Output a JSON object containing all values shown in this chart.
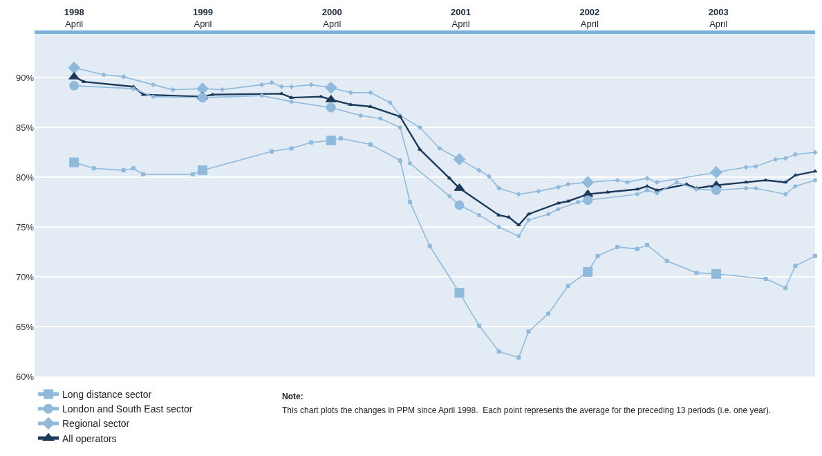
{
  "chart_data": {
    "type": "line",
    "xlim": [
      "1997-12-10",
      "2003-12-31"
    ],
    "ylim": [
      60,
      94.4
    ],
    "xticks": [
      {
        "value": "1998-04",
        "label": "1998\nApril"
      },
      {
        "value": "1999-04",
        "label": "1999\nApril"
      },
      {
        "value": "2000-04",
        "label": "2000\nApril"
      },
      {
        "value": "2001-04",
        "label": "2001\nApril"
      },
      {
        "value": "2002-04",
        "label": "2002\nApril"
      },
      {
        "value": "2003-04",
        "label": "2003\nApril"
      }
    ],
    "yticks": [
      {
        "value": 60,
        "label": "60%"
      },
      {
        "value": 65,
        "label": "65%"
      },
      {
        "value": 70,
        "label": "70%"
      },
      {
        "value": 75,
        "label": "75%"
      },
      {
        "value": 80,
        "label": "80%"
      },
      {
        "value": 85,
        "label": "85%"
      },
      {
        "value": 90,
        "label": "90%"
      }
    ],
    "grid": "y",
    "legend": "bottom left",
    "line_style": "solid",
    "series": [
      {
        "name": "Long distance sector",
        "color": "#8fbadc",
        "marker": "square",
        "x": [
          "1998-04-01",
          "1998-05-27",
          "1998-08-19",
          "1998-09-16",
          "1998-10-14",
          "1999-03-03",
          "1999-03-31",
          "1999-10-13",
          "1999-12-08",
          "2000-02-02",
          "2000-03-29",
          "2000-04-26",
          "2000-07-19",
          "2000-10-11",
          "2000-11-08",
          "2001-01-03",
          "2001-03-28",
          "2001-05-23",
          "2001-07-18",
          "2001-09-12",
          "2001-10-10",
          "2001-12-05",
          "2002-01-30",
          "2002-03-27",
          "2002-04-24",
          "2002-06-19",
          "2002-08-14",
          "2002-09-11",
          "2002-11-06",
          "2003-01-29",
          "2003-03-26",
          "2003-08-13",
          "2003-10-08",
          "2003-11-05",
          "2003-12-31"
        ],
        "values": [
          81.5,
          80.9,
          80.7,
          80.9,
          80.3,
          80.3,
          80.7,
          82.6,
          82.9,
          83.5,
          83.7,
          83.9,
          83.3,
          81.7,
          77.5,
          73.1,
          68.4,
          65.1,
          62.5,
          61.9,
          64.5,
          66.3,
          69.1,
          70.5,
          72.1,
          73.0,
          72.8,
          73.2,
          71.6,
          70.4,
          70.3,
          69.8,
          68.9,
          71.1,
          72.1
        ]
      },
      {
        "name": "London and South East sector",
        "color": "#8fbadc",
        "marker": "circle",
        "x": [
          "1998-04-01",
          "1998-09-16",
          "1998-11-11",
          "1999-03-31",
          "1999-09-15",
          "1999-12-08",
          "2000-03-29",
          "2000-06-21",
          "2000-08-16",
          "2000-10-11",
          "2000-11-08",
          "2001-02-28",
          "2001-03-28",
          "2001-05-23",
          "2001-07-18",
          "2001-09-12",
          "2001-10-10",
          "2001-12-05",
          "2002-01-02",
          "2002-02-27",
          "2002-03-27",
          "2002-08-14",
          "2002-09-11",
          "2002-10-09",
          "2002-12-04",
          "2003-01-29",
          "2003-03-26",
          "2003-06-18",
          "2003-07-16",
          "2003-10-08",
          "2003-11-05",
          "2003-12-31"
        ],
        "values": [
          89.2,
          88.9,
          88.1,
          88.0,
          88.2,
          87.6,
          87.0,
          86.2,
          85.9,
          85.0,
          81.4,
          78.1,
          77.2,
          76.2,
          75.0,
          74.1,
          75.7,
          76.3,
          76.8,
          77.5,
          77.7,
          78.3,
          78.7,
          78.4,
          79.5,
          78.8,
          78.7,
          78.9,
          78.9,
          78.3,
          79.1,
          79.7
        ]
      },
      {
        "name": "Regional sector",
        "color": "#8fbadc",
        "marker": "diamond",
        "x": [
          "1998-04-01",
          "1998-06-24",
          "1998-08-19",
          "1998-11-11",
          "1999-01-06",
          "1999-03-31",
          "1999-05-26",
          "1999-09-15",
          "1999-10-13",
          "1999-11-10",
          "1999-12-08",
          "2000-02-02",
          "2000-03-29",
          "2000-05-24",
          "2000-07-19",
          "2000-09-13",
          "2000-10-11",
          "2000-12-06",
          "2001-01-31",
          "2001-03-28",
          "2001-05-23",
          "2001-06-20",
          "2001-07-18",
          "2001-09-12",
          "2001-11-07",
          "2002-01-02",
          "2002-01-30",
          "2002-03-27",
          "2002-06-19",
          "2002-07-17",
          "2002-09-11",
          "2002-10-09",
          "2003-03-26",
          "2003-06-18",
          "2003-07-16",
          "2003-09-10",
          "2003-10-08",
          "2003-11-05",
          "2003-12-31"
        ],
        "values": [
          91.0,
          90.3,
          90.1,
          89.3,
          88.8,
          88.9,
          88.8,
          89.3,
          89.5,
          89.1,
          89.1,
          89.3,
          89.0,
          88.5,
          88.5,
          87.5,
          86.2,
          85.0,
          82.9,
          81.8,
          80.7,
          80.1,
          78.9,
          78.3,
          78.6,
          79.0,
          79.3,
          79.5,
          79.7,
          79.5,
          79.9,
          79.5,
          80.5,
          81.0,
          81.1,
          81.8,
          81.9,
          82.3,
          82.5
        ]
      },
      {
        "name": "All operators",
        "color": "#1b3a5c",
        "marker": "triangle",
        "x": [
          "1998-04-01",
          "1998-04-29",
          "1998-09-16",
          "1998-10-14",
          "1999-03-31",
          "1999-04-28",
          "1999-11-10",
          "1999-12-08",
          "2000-03-01",
          "2000-03-29",
          "2000-05-24",
          "2000-07-19",
          "2000-10-11",
          "2000-12-06",
          "2001-02-28",
          "2001-03-28",
          "2001-07-18",
          "2001-08-15",
          "2001-09-12",
          "2001-10-10",
          "2002-01-02",
          "2002-01-30",
          "2002-03-27",
          "2002-05-22",
          "2002-08-14",
          "2002-09-11",
          "2002-10-09",
          "2003-01-01",
          "2003-01-29",
          "2003-03-26",
          "2003-06-18",
          "2003-08-13",
          "2003-10-08",
          "2003-11-05",
          "2003-12-31"
        ],
        "values": [
          90.1,
          89.6,
          89.1,
          88.3,
          88.1,
          88.3,
          88.4,
          88.0,
          88.1,
          87.8,
          87.3,
          87.1,
          86.1,
          82.8,
          79.9,
          78.9,
          76.2,
          76.0,
          75.2,
          76.3,
          77.4,
          77.6,
          78.3,
          78.5,
          78.8,
          79.1,
          78.7,
          79.3,
          78.9,
          79.2,
          79.5,
          79.7,
          79.5,
          80.2,
          80.6
        ]
      }
    ],
    "annotations": [
      "Note:",
      "This chart plots the changes in PPM since April 1998.  Each point represents the average for the preceding 13 periods (i.e. one year)."
    ]
  }
}
